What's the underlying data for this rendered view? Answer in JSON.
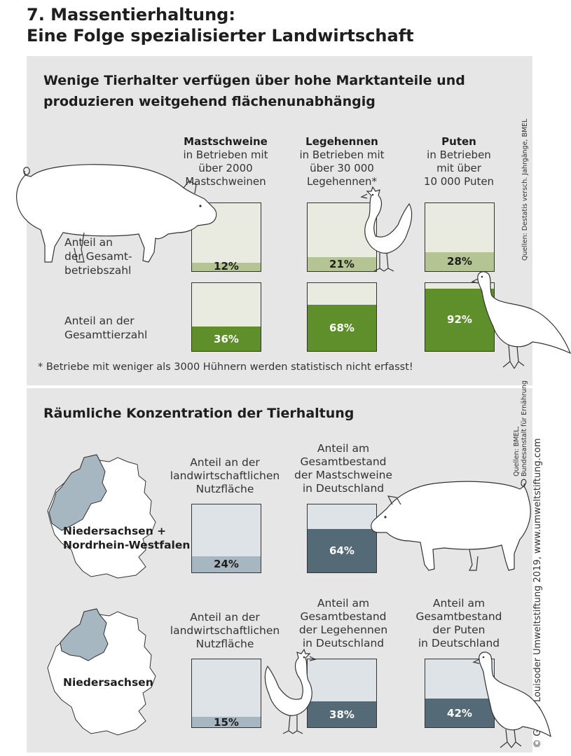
{
  "title_line1": "7. Massentierhaltung:",
  "title_line2": "Eine Folge spezialisierter Landwirtschaft",
  "top": {
    "heading_line1": "Wenige Tierhalter verfügen über hohe Marktanteile und",
    "heading_line2": "produzieren weitgehend flächenunabhängig",
    "row_labels": {
      "betriebe": [
        "Anteil an",
        "der Gesamt-",
        "betriebszahl"
      ],
      "tiere": [
        "Anteil an der",
        "Gesamttierzahl"
      ]
    },
    "columns": [
      {
        "name": "Mastschweine",
        "desc": [
          "in Betrieben mit",
          "über 2000",
          "Mastschweinen"
        ]
      },
      {
        "name": "Legehennen",
        "desc": [
          "in Betrieben mit",
          "über 30 000",
          "Legehennen*"
        ]
      },
      {
        "name": "Puten",
        "desc": [
          "in Betrieben",
          "mit über",
          "10 000 Puten"
        ]
      }
    ],
    "footnote": "* Betriebe mit weniger als 3000 Hühnern werden statistisch nicht erfasst!",
    "source": [
      "Quellen: Destatis versch. Jahrgänge, BMEL"
    ]
  },
  "bottom": {
    "heading": "Räumliche Konzentration der Tierhaltung",
    "source": [
      "Quellen: BMEL,",
      "Bundesanstalt für Ernährung"
    ],
    "row1": {
      "map_label": [
        "Niedersachsen +",
        "Nordrhein-Westfalen"
      ],
      "headers": [
        [
          "Anteil an der",
          "landwirtschaftlichen",
          "Nutzfläche"
        ],
        [
          "Anteil am",
          "Gesamtbestand",
          "der Mastschweine",
          "in Deutschland"
        ]
      ]
    },
    "row2": {
      "map_label": [
        "Niedersachsen"
      ],
      "headers": [
        [
          "Anteil an der",
          "landwirtschaftlichen",
          "Nutzfläche"
        ],
        [
          "Anteil am",
          "Gesamtbestand",
          "der Legehennen",
          "in Deutschland"
        ],
        [
          "Anteil am",
          "Gesamtbestand",
          "der Puten",
          "in Deutschland"
        ]
      ]
    }
  },
  "copyright": "© Gregor Louisoder Umweltstiftung 2019, www.umweltstiftung.com",
  "colors": {
    "panel": "#e6e6e6",
    "light_green": "#b4c593",
    "dark_green": "#5f8f2b",
    "light_blue": "#a7b7c1",
    "dark_blue": "#546b77"
  },
  "chart_data": [
    {
      "type": "bar",
      "categories": [
        "Mastschweine",
        "Legehennen",
        "Puten"
      ],
      "series": [
        {
          "name": "Anteil an der Gesamtbetriebszahl",
          "values": [
            12,
            21,
            28
          ],
          "labels": [
            "12%",
            "21%",
            "28%"
          ]
        },
        {
          "name": "Anteil an der Gesamttierzahl",
          "values": [
            36,
            68,
            92
          ],
          "labels": [
            "36%",
            "68%",
            "92%"
          ]
        }
      ],
      "ylim": [
        0,
        100
      ]
    },
    {
      "type": "bar",
      "title": "Niedersachsen + Nordrhein-Westfalen",
      "categories": [
        "Anteil an der landwirtschaftlichen Nutzfläche",
        "Anteil am Gesamtbestand der Mastschweine in Deutschland"
      ],
      "values": [
        24,
        64
      ],
      "labels": [
        "24%",
        "64%"
      ],
      "ylim": [
        0,
        100
      ]
    },
    {
      "type": "bar",
      "title": "Niedersachsen",
      "categories": [
        "Anteil an der landwirtschaftlichen Nutzfläche",
        "Anteil am Gesamtbestand der Legehennen in Deutschland",
        "Anteil am Gesamtbestand der Puten in Deutschland"
      ],
      "values": [
        15,
        38,
        42
      ],
      "labels": [
        "15%",
        "38%",
        "42%"
      ],
      "ylim": [
        0,
        100
      ]
    }
  ]
}
